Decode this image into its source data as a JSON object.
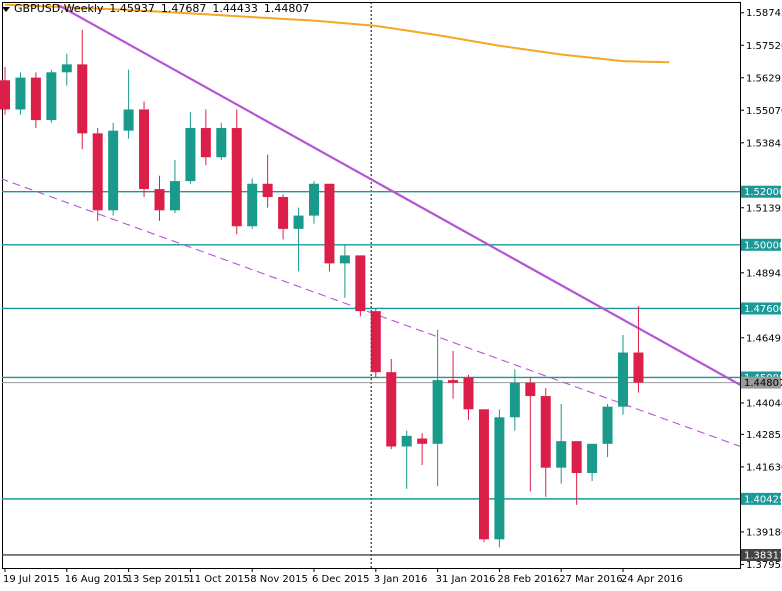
{
  "chart_data": {
    "type": "candlestick",
    "symbol": "GBPUSD",
    "timeframe": "Weekly",
    "header": {
      "title": "GBPUSD,Weekly",
      "open": "1.45937",
      "high": "1.47687",
      "low": "1.44433",
      "close": "1.44807"
    },
    "ylim": [
      1.3782,
      1.5915
    ],
    "y_ticks": [
      "1.58745",
      "1.57520",
      "1.56295",
      "1.55070",
      "1.53845",
      "1.51395",
      "1.48945",
      "1.46495",
      "1.44040",
      "1.42855",
      "1.41630",
      "1.39180",
      "1.37955"
    ],
    "x_ticks": [
      {
        "index": 0,
        "label": "19 Jul 2015"
      },
      {
        "index": 4,
        "label": "16 Aug 2015"
      },
      {
        "index": 8,
        "label": "13 Sep 2015"
      },
      {
        "index": 12,
        "label": "11 Oct 2015"
      },
      {
        "index": 16,
        "label": "8 Nov 2015"
      },
      {
        "index": 20,
        "label": "6 Dec 2015"
      },
      {
        "index": 24,
        "label": "3 Jan 2016"
      },
      {
        "index": 28,
        "label": "31 Jan 2016"
      },
      {
        "index": 32,
        "label": "28 Feb 2016"
      },
      {
        "index": 36,
        "label": "27 Mar 2016"
      },
      {
        "index": 40,
        "label": "24 Apr 2016"
      }
    ],
    "candles": [
      {
        "o": 1.562,
        "h": 1.567,
        "l": 1.549,
        "c": 1.551
      },
      {
        "o": 1.551,
        "h": 1.565,
        "l": 1.549,
        "c": 1.563
      },
      {
        "o": 1.563,
        "h": 1.565,
        "l": 1.544,
        "c": 1.547
      },
      {
        "o": 1.547,
        "h": 1.566,
        "l": 1.546,
        "c": 1.565
      },
      {
        "o": 1.565,
        "h": 1.572,
        "l": 1.56,
        "c": 1.568
      },
      {
        "o": 1.568,
        "h": 1.581,
        "l": 1.536,
        "c": 1.542
      },
      {
        "o": 1.542,
        "h": 1.544,
        "l": 1.509,
        "c": 1.513
      },
      {
        "o": 1.513,
        "h": 1.546,
        "l": 1.511,
        "c": 1.543
      },
      {
        "o": 1.543,
        "h": 1.566,
        "l": 1.54,
        "c": 1.551
      },
      {
        "o": 1.551,
        "h": 1.554,
        "l": 1.518,
        "c": 1.521
      },
      {
        "o": 1.521,
        "h": 1.526,
        "l": 1.509,
        "c": 1.513
      },
      {
        "o": 1.513,
        "h": 1.532,
        "l": 1.512,
        "c": 1.524
      },
      {
        "o": 1.524,
        "h": 1.55,
        "l": 1.523,
        "c": 1.544
      },
      {
        "o": 1.544,
        "h": 1.551,
        "l": 1.53,
        "c": 1.533
      },
      {
        "o": 1.533,
        "h": 1.546,
        "l": 1.532,
        "c": 1.544
      },
      {
        "o": 1.544,
        "h": 1.551,
        "l": 1.504,
        "c": 1.507
      },
      {
        "o": 1.507,
        "h": 1.525,
        "l": 1.506,
        "c": 1.523
      },
      {
        "o": 1.523,
        "h": 1.534,
        "l": 1.514,
        "c": 1.518
      },
      {
        "o": 1.518,
        "h": 1.519,
        "l": 1.502,
        "c": 1.506
      },
      {
        "o": 1.506,
        "h": 1.514,
        "l": 1.49,
        "c": 1.511
      },
      {
        "o": 1.511,
        "h": 1.524,
        "l": 1.508,
        "c": 1.523
      },
      {
        "o": 1.523,
        "h": 1.523,
        "l": 1.49,
        "c": 1.493
      },
      {
        "o": 1.493,
        "h": 1.5,
        "l": 1.48,
        "c": 1.496
      },
      {
        "o": 1.496,
        "h": 1.496,
        "l": 1.473,
        "c": 1.475
      },
      {
        "o": 1.475,
        "h": 1.476,
        "l": 1.45,
        "c": 1.452
      },
      {
        "o": 1.452,
        "h": 1.457,
        "l": 1.423,
        "c": 1.424
      },
      {
        "o": 1.424,
        "h": 1.43,
        "l": 1.408,
        "c": 1.428
      },
      {
        "o": 1.427,
        "h": 1.429,
        "l": 1.417,
        "c": 1.425
      },
      {
        "o": 1.425,
        "h": 1.468,
        "l": 1.409,
        "c": 1.449
      },
      {
        "o": 1.449,
        "h": 1.46,
        "l": 1.442,
        "c": 1.448
      },
      {
        "o": 1.45,
        "h": 1.451,
        "l": 1.434,
        "c": 1.438
      },
      {
        "o": 1.438,
        "h": 1.438,
        "l": 1.388,
        "c": 1.389
      },
      {
        "o": 1.389,
        "h": 1.438,
        "l": 1.386,
        "c": 1.435
      },
      {
        "o": 1.435,
        "h": 1.453,
        "l": 1.43,
        "c": 1.448
      },
      {
        "o": 1.448,
        "h": 1.45,
        "l": 1.407,
        "c": 1.443
      },
      {
        "o": 1.443,
        "h": 1.446,
        "l": 1.405,
        "c": 1.416
      },
      {
        "o": 1.416,
        "h": 1.44,
        "l": 1.41,
        "c": 1.426
      },
      {
        "o": 1.426,
        "h": 1.426,
        "l": 1.402,
        "c": 1.414
      },
      {
        "o": 1.414,
        "h": 1.425,
        "l": 1.411,
        "c": 1.425
      },
      {
        "o": 1.425,
        "h": 1.44,
        "l": 1.42,
        "c": 1.439
      },
      {
        "o": 1.439,
        "h": 1.466,
        "l": 1.436,
        "c": 1.4594
      },
      {
        "o": 1.4594,
        "h": 1.4769,
        "l": 1.4443,
        "c": 1.4481
      }
    ],
    "horizontal_levels": [
      {
        "value": 1.52,
        "label": "1.52000",
        "color": "#1a9999"
      },
      {
        "value": 1.5,
        "label": "1.50000",
        "color": "#1a9999"
      },
      {
        "value": 1.476,
        "label": "1.47600",
        "color": "#1a9999"
      },
      {
        "value": 1.45,
        "label": "1.45000",
        "color": "#1a9999"
      },
      {
        "value": 1.40425,
        "label": "1.40425",
        "color": "#1a9999"
      },
      {
        "value": 1.38311,
        "label": "1.38311",
        "color": "#444444"
      }
    ],
    "current_price": {
      "value": 1.44807,
      "label": "1.44807"
    },
    "moving_average": {
      "color": "#f5a623",
      "points": [
        {
          "i": 0,
          "v": 1.5905
        },
        {
          "i": 4,
          "v": 1.5895
        },
        {
          "i": 8,
          "v": 1.5885
        },
        {
          "i": 12,
          "v": 1.5872
        },
        {
          "i": 16,
          "v": 1.5858
        },
        {
          "i": 20,
          "v": 1.5845
        },
        {
          "i": 24,
          "v": 1.5825
        },
        {
          "i": 28,
          "v": 1.579
        },
        {
          "i": 32,
          "v": 1.575
        },
        {
          "i": 36,
          "v": 1.5717
        },
        {
          "i": 40,
          "v": 1.5692
        },
        {
          "i": 43,
          "v": 1.5688
        }
      ]
    },
    "trendlines": [
      {
        "name": "solid",
        "color": "#b555d4",
        "style": "solid",
        "p1": {
          "i": 3.4,
          "v": 1.5905
        },
        "p2": {
          "i": 49.5,
          "v": 1.441
        }
      },
      {
        "name": "dashed",
        "color": "#b555d4",
        "style": "dashed",
        "p1": {
          "i": -0.3,
          "v": 1.525
        },
        "p2": {
          "i": 49.5,
          "v": 1.42
        }
      }
    ],
    "vertical_marker": {
      "i": 23.7
    },
    "colors": {
      "bull": "#1a9a8a",
      "bear": "#dc1f48",
      "grid": "#000000",
      "axis_text": "#000000"
    }
  }
}
